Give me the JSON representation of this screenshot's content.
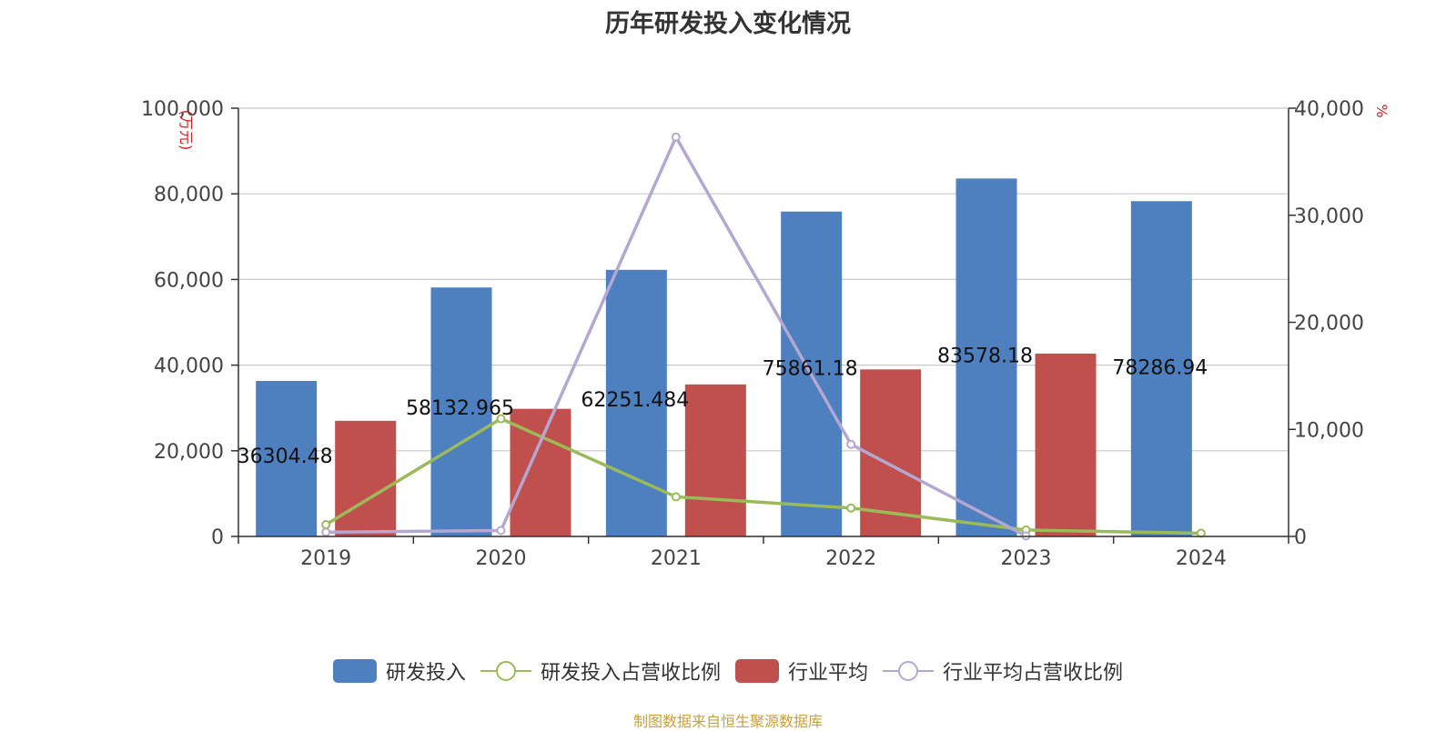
{
  "chart_data": {
    "type": "bar",
    "title": "历年研发投入变化情况",
    "categories": [
      "2019",
      "2020",
      "2021",
      "2022",
      "2023",
      "2024"
    ],
    "left_axis": {
      "label": "(万元)",
      "ylim": [
        0,
        100000
      ],
      "ticks": [
        "0",
        "20,000",
        "40,000",
        "60,000",
        "80,000",
        "100,000"
      ]
    },
    "right_axis": {
      "label": "%",
      "ylim": [
        0,
        40000
      ],
      "ticks": [
        "0",
        "10,000",
        "20,000",
        "30,000",
        "40,000"
      ]
    },
    "series": [
      {
        "name": "研发投入",
        "type": "bar",
        "axis": "left",
        "color": "#4e7fbf",
        "values": [
          36304.48,
          58132.965,
          62251.484,
          75861.18,
          83578.18,
          78286.94
        ],
        "labels": [
          "36304.48",
          "58132.965",
          "62251.484",
          "75861.18",
          "83578.18",
          "78286.94"
        ]
      },
      {
        "name": "行业平均",
        "type": "bar",
        "axis": "left",
        "color": "#c0504d",
        "values": [
          27000,
          29800,
          35500,
          39000,
          42700,
          null
        ]
      },
      {
        "name": "研发投入占营收比例",
        "type": "line",
        "axis": "right",
        "color": "#9bbb59",
        "values": [
          1100,
          11000,
          3700,
          2650,
          600,
          300
        ]
      },
      {
        "name": "行业平均占营收比例",
        "type": "line",
        "axis": "right",
        "color": "#b5a8d0",
        "values": [
          400,
          550,
          37300,
          8600,
          50,
          null
        ]
      }
    ],
    "grid": true,
    "legend_position": "bottom"
  },
  "source_text": "制图数据来自恒生聚源数据库"
}
